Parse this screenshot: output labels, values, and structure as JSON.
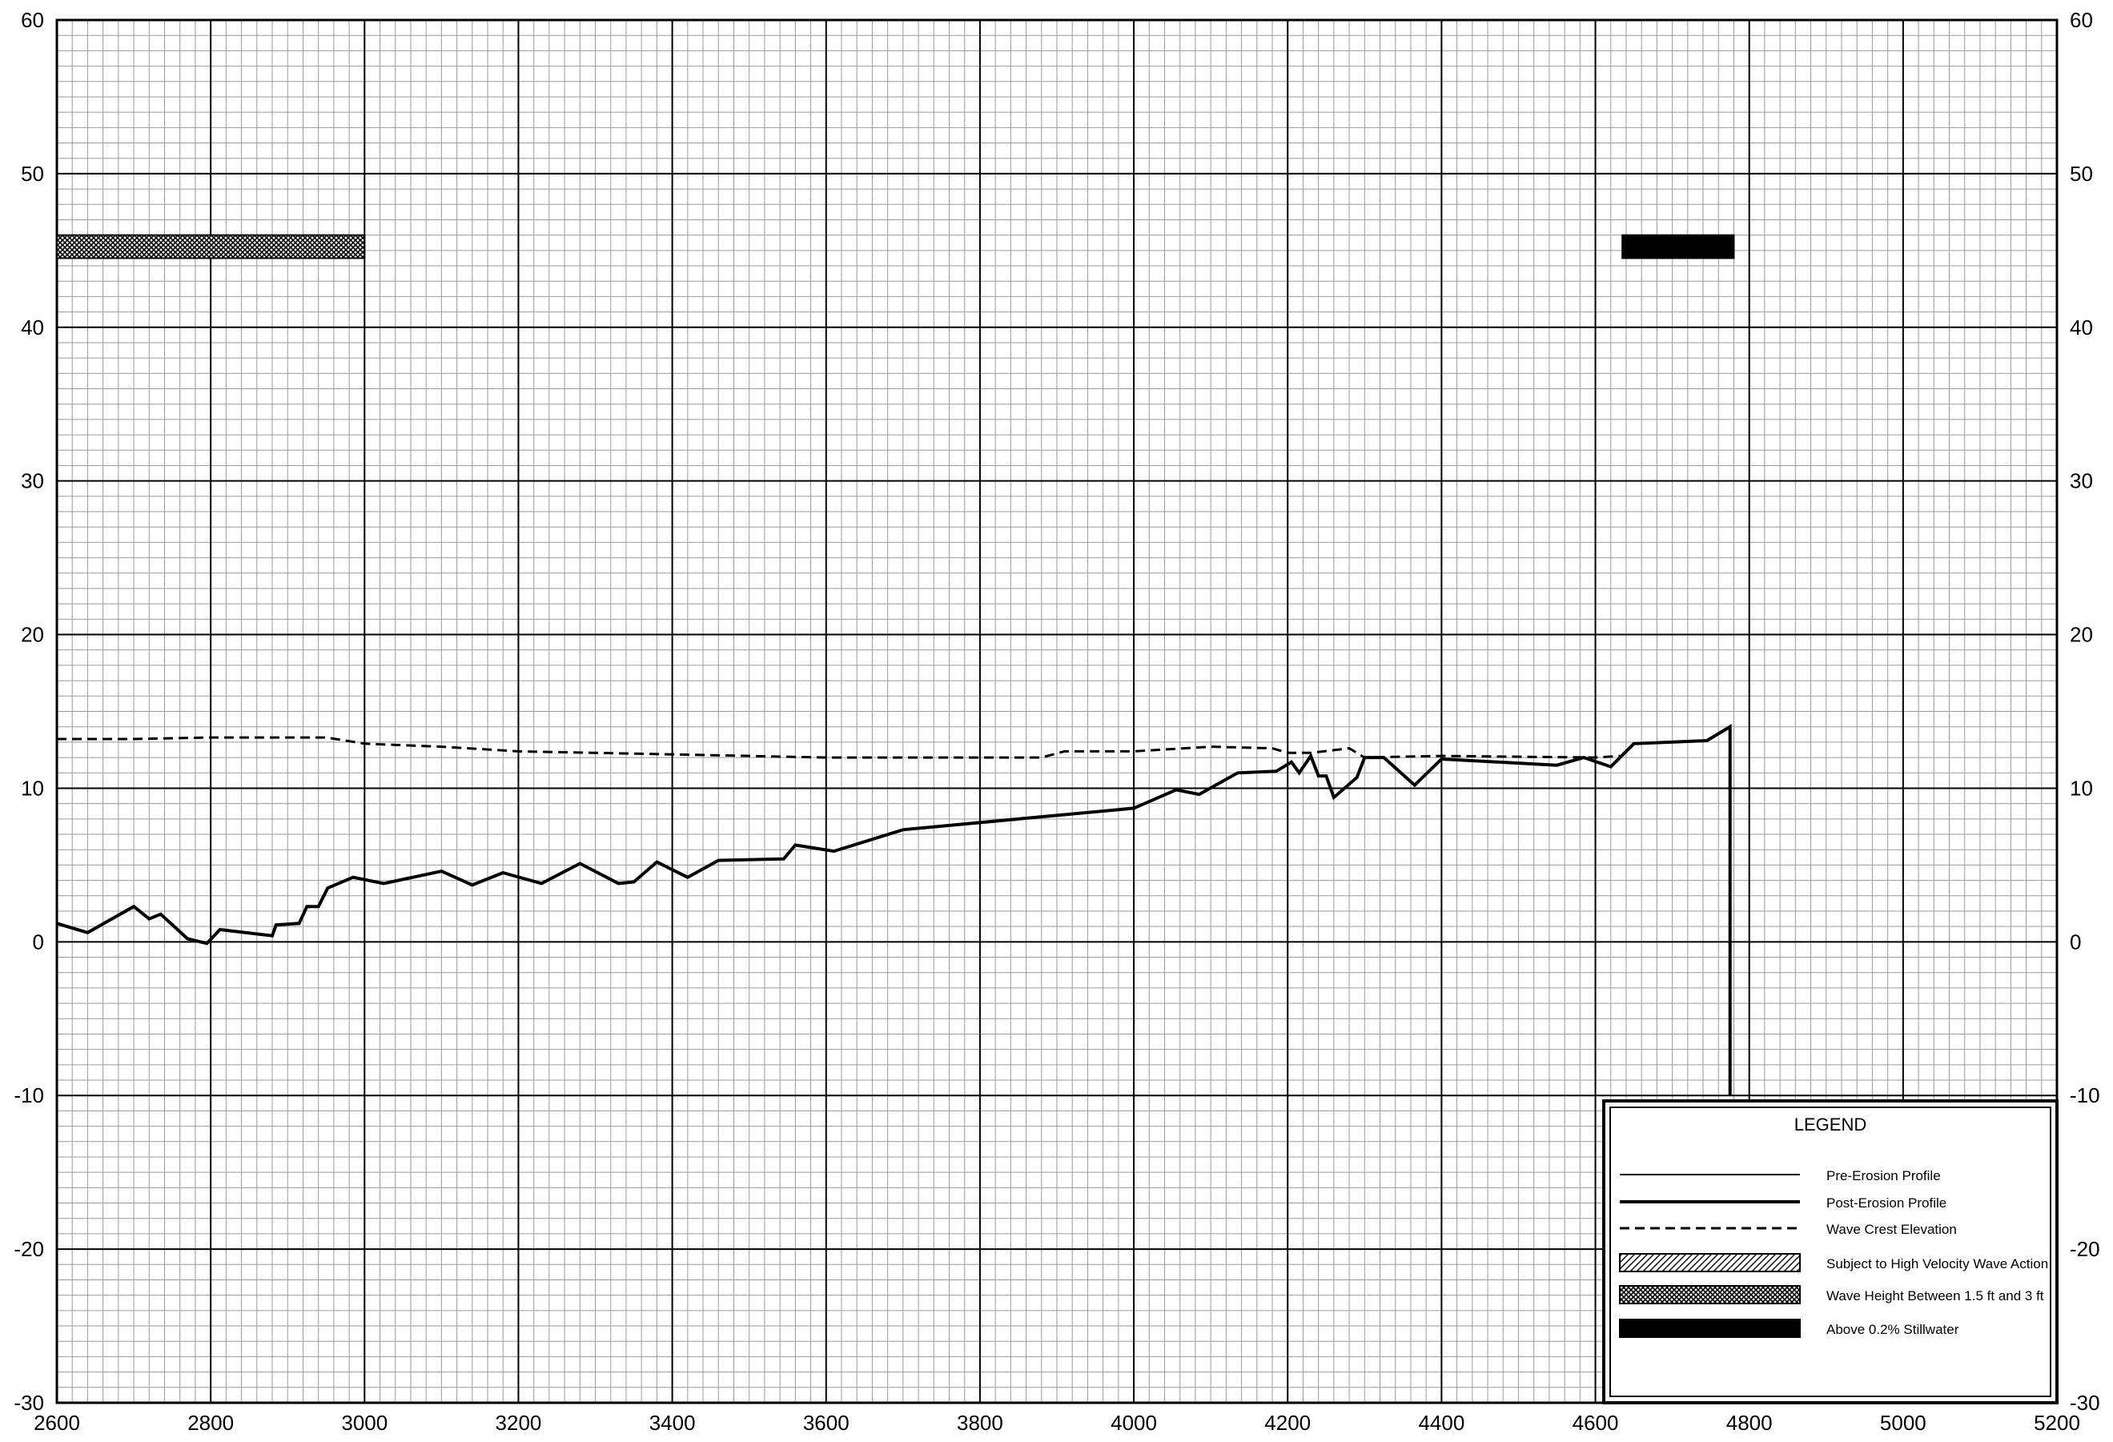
{
  "chart_data": {
    "type": "line",
    "title": "",
    "xlabel": "",
    "ylabel": "",
    "xlim": [
      2600,
      5200
    ],
    "ylim": [
      -30,
      60
    ],
    "x_ticks": [
      "2600",
      "2800",
      "3000",
      "3200",
      "3400",
      "3600",
      "3800",
      "4000",
      "4200",
      "4400",
      "4600",
      "4800",
      "5000",
      "5200"
    ],
    "y_ticks": [
      "60",
      "50",
      "40",
      "30",
      "20",
      "10",
      "0",
      "-10",
      "-20",
      "-30"
    ],
    "x_tick_values": [
      2600,
      2800,
      3000,
      3200,
      3400,
      3600,
      3800,
      4000,
      4200,
      4400,
      4600,
      4800,
      5000,
      5200
    ],
    "y_tick_values": [
      60,
      50,
      40,
      30,
      20,
      10,
      0,
      -10,
      -20,
      -30
    ],
    "grid": true,
    "legend_position": "bottom-right",
    "series": [
      {
        "name": "Post-Erosion Profile",
        "style": "solid-thick",
        "points": [
          [
            2600,
            1.2
          ],
          [
            2640,
            0.6
          ],
          [
            2700,
            2.3
          ],
          [
            2720,
            1.5
          ],
          [
            2735,
            1.8
          ],
          [
            2770,
            0.2
          ],
          [
            2795,
            -0.1
          ],
          [
            2812,
            0.8
          ],
          [
            2880,
            0.4
          ],
          [
            2885,
            1.1
          ],
          [
            2915,
            1.2
          ],
          [
            2925,
            2.3
          ],
          [
            2940,
            2.3
          ],
          [
            2952,
            3.5
          ],
          [
            2985,
            4.2
          ],
          [
            3025,
            3.8
          ],
          [
            3100,
            4.6
          ],
          [
            3140,
            3.7
          ],
          [
            3180,
            4.5
          ],
          [
            3230,
            3.8
          ],
          [
            3280,
            5.1
          ],
          [
            3330,
            3.8
          ],
          [
            3350,
            3.9
          ],
          [
            3380,
            5.2
          ],
          [
            3420,
            4.2
          ],
          [
            3460,
            5.3
          ],
          [
            3545,
            5.4
          ],
          [
            3560,
            6.3
          ],
          [
            3610,
            5.9
          ],
          [
            3700,
            7.3
          ],
          [
            4000,
            8.7
          ],
          [
            4055,
            9.9
          ],
          [
            4085,
            9.6
          ],
          [
            4135,
            11.0
          ],
          [
            4185,
            11.1
          ],
          [
            4205,
            11.7
          ],
          [
            4215,
            11.0
          ],
          [
            4230,
            12.1
          ],
          [
            4240,
            10.8
          ],
          [
            4250,
            10.8
          ],
          [
            4260,
            9.4
          ],
          [
            4290,
            10.7
          ],
          [
            4300,
            12.0
          ],
          [
            4325,
            12.0
          ],
          [
            4365,
            10.2
          ],
          [
            4400,
            11.9
          ],
          [
            4550,
            11.5
          ],
          [
            4585,
            12.0
          ],
          [
            4620,
            11.4
          ],
          [
            4650,
            12.9
          ],
          [
            4745,
            13.1
          ],
          [
            4775,
            14.0
          ],
          [
            4775,
            -10.0
          ]
        ]
      },
      {
        "name": "Wave Crest Elevation",
        "style": "dashed",
        "points": [
          [
            2600,
            13.2
          ],
          [
            2700,
            13.2
          ],
          [
            2800,
            13.3
          ],
          [
            2950,
            13.3
          ],
          [
            3000,
            12.9
          ],
          [
            3100,
            12.7
          ],
          [
            3200,
            12.4
          ],
          [
            3400,
            12.2
          ],
          [
            3600,
            12.0
          ],
          [
            3800,
            12.0
          ],
          [
            3880,
            12.0
          ],
          [
            3910,
            12.4
          ],
          [
            4000,
            12.4
          ],
          [
            4100,
            12.7
          ],
          [
            4180,
            12.6
          ],
          [
            4200,
            12.3
          ],
          [
            4230,
            12.3
          ],
          [
            4280,
            12.6
          ],
          [
            4300,
            12.0
          ],
          [
            4400,
            12.1
          ],
          [
            4600,
            12.0
          ],
          [
            4635,
            12.1
          ]
        ]
      }
    ],
    "bands": [
      {
        "legend_index": 4,
        "fill": "crosshatch",
        "x": [
          2600,
          3000
        ],
        "y": [
          44.5,
          46.0
        ]
      },
      {
        "legend_index": 5,
        "fill": "solid",
        "x": [
          4635,
          4780
        ],
        "y": [
          44.5,
          46.0
        ]
      }
    ],
    "legend": {
      "title": "LEGEND",
      "items": [
        {
          "label": "Pre-Erosion Profile",
          "swatch": "thin-line"
        },
        {
          "label": "Post-Erosion Profile",
          "swatch": "thick-line"
        },
        {
          "label": "Wave Crest Elevation",
          "swatch": "dashed-line"
        },
        {
          "label": "Subject to High Velocity Wave Action",
          "swatch": "diagonal-hatch"
        },
        {
          "label": "Wave Height Between 1.5 ft and 3 ft",
          "swatch": "crosshatch"
        },
        {
          "label": "Above 0.2% Stillwater",
          "swatch": "solid"
        }
      ]
    },
    "colors": {
      "line": "#000000",
      "minor_grid": "#9a9a9a",
      "major_grid": "#000000",
      "background": "#ffffff"
    }
  }
}
